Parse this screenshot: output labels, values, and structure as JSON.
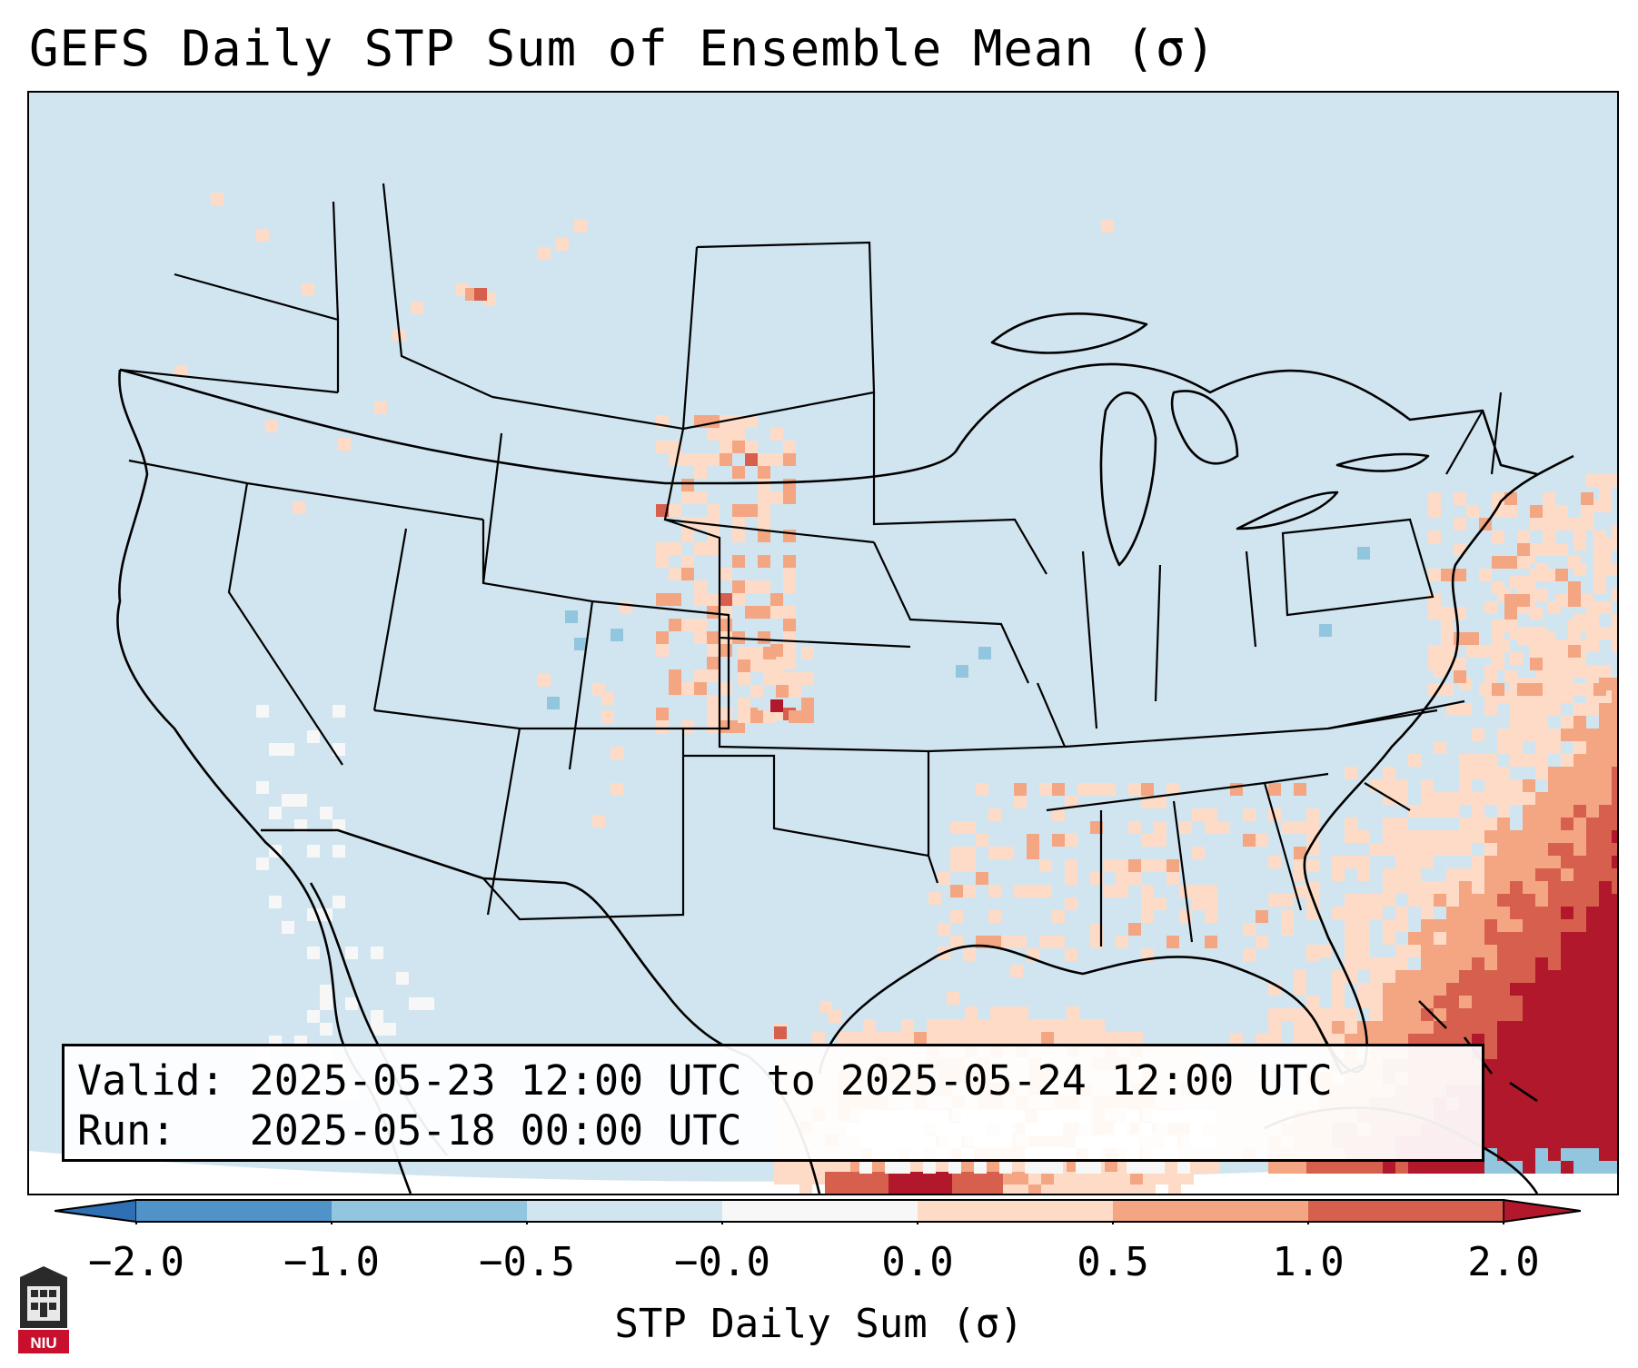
{
  "title": "GEFS Daily STP Sum of Ensemble Mean (σ)",
  "info": {
    "valid_label": "Valid:",
    "valid_value": "2025-05-23 12:00 UTC to 2025-05-24 12:00 UTC",
    "run_label": "Run:",
    "run_value": "2025-05-18 00:00 UTC"
  },
  "colorbar": {
    "label": "STP Daily Sum (σ)",
    "ticks": [
      "−2.0",
      "−1.0",
      "−0.5",
      "−0.0",
      "0.0",
      "0.5",
      "1.0",
      "2.0"
    ],
    "colors": {
      "under": "#2f6fb3",
      "bin_n2_n1": "#4f93c8",
      "bin_n1_n05": "#92c5de",
      "bin_n05_0": "#d1e5f0",
      "bin_0": "#f7f7f7",
      "bin_0_05": "#fddbc7",
      "bin_05_1": "#f4a582",
      "bin_1_2": "#d6604d",
      "over": "#b2182b"
    }
  },
  "logo": {
    "text": "NIU",
    "icon": "niu-seal-icon"
  },
  "map": {
    "region": "CONUS",
    "background_color": "#d1e5f0",
    "boundaries": [
      "coastlines",
      "country borders",
      "state borders",
      "great lakes"
    ]
  }
}
